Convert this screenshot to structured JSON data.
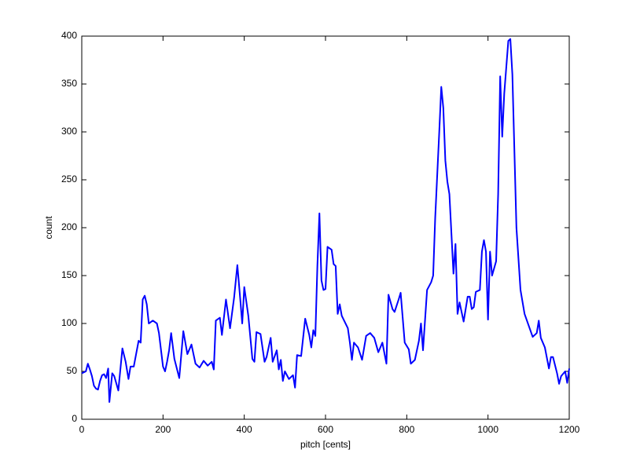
{
  "chart_data": {
    "type": "line",
    "xlabel": "pitch [cents]",
    "ylabel": "count",
    "xlim": [
      0,
      1200
    ],
    "ylim": [
      0,
      400
    ],
    "xticks": [
      0,
      200,
      400,
      600,
      800,
      1000,
      1200
    ],
    "yticks": [
      0,
      50,
      100,
      150,
      200,
      250,
      300,
      350,
      400
    ],
    "grid": false,
    "x": [
      0,
      5,
      10,
      15,
      20,
      25,
      30,
      35,
      40,
      45,
      50,
      55,
      60,
      65,
      68,
      75,
      80,
      90,
      100,
      108,
      115,
      120,
      128,
      140,
      145,
      150,
      155,
      160,
      165,
      175,
      185,
      190,
      200,
      205,
      210,
      215,
      220,
      228,
      240,
      250,
      260,
      270,
      280,
      290,
      300,
      310,
      320,
      325,
      330,
      340,
      345,
      355,
      365,
      375,
      383,
      390,
      395,
      400,
      410,
      420,
      425,
      430,
      440,
      450,
      455,
      465,
      470,
      480,
      485,
      490,
      495,
      500,
      510,
      520,
      525,
      530,
      540,
      550,
      560,
      565,
      570,
      575,
      580,
      585,
      590,
      595,
      600,
      605,
      615,
      620,
      625,
      630,
      635,
      640,
      655,
      660,
      665,
      670,
      680,
      690,
      700,
      710,
      720,
      730,
      740,
      750,
      755,
      765,
      770,
      780,
      785,
      795,
      805,
      810,
      820,
      830,
      835,
      840,
      850,
      860,
      865,
      870,
      880,
      885,
      890,
      895,
      900,
      905,
      915,
      920,
      925,
      930,
      940,
      950,
      955,
      960,
      965,
      970,
      980,
      985,
      990,
      995,
      1000,
      1005,
      1010,
      1020,
      1025,
      1030,
      1035,
      1040,
      1050,
      1055,
      1060,
      1070,
      1080,
      1090,
      1100,
      1110,
      1120,
      1125,
      1130,
      1140,
      1150,
      1155,
      1160,
      1170,
      1175,
      1180,
      1190,
      1195,
      1200
    ],
    "series": [
      {
        "name": "count",
        "color": "#0000ff",
        "values": [
          48,
          49,
          50,
          58,
          52,
          45,
          35,
          32,
          31,
          40,
          46,
          47,
          43,
          53,
          18,
          48,
          45,
          30,
          74,
          60,
          42,
          55,
          55,
          82,
          80,
          125,
          129,
          120,
          100,
          103,
          100,
          90,
          55,
          50,
          60,
          72,
          90,
          63,
          43,
          92,
          68,
          78,
          58,
          54,
          61,
          56,
          60,
          52,
          103,
          106,
          88,
          125,
          95,
          127,
          161,
          126,
          100,
          138,
          108,
          63,
          60,
          91,
          89,
          60,
          65,
          85,
          60,
          72,
          52,
          62,
          40,
          50,
          42,
          46,
          33,
          67,
          66,
          105,
          88,
          75,
          93,
          87,
          160,
          215,
          145,
          135,
          136,
          180,
          177,
          162,
          160,
          110,
          120,
          108,
          95,
          80,
          62,
          80,
          75,
          62,
          87,
          90,
          85,
          70,
          80,
          58,
          130,
          115,
          112,
          125,
          132,
          80,
          73,
          58,
          62,
          82,
          100,
          72,
          135,
          143,
          150,
          210,
          300,
          347,
          325,
          270,
          248,
          235,
          152,
          183,
          110,
          122,
          102,
          128,
          128,
          115,
          117,
          133,
          135,
          175,
          187,
          175,
          104,
          175,
          150,
          165,
          235,
          358,
          295,
          340,
          395,
          397,
          360,
          200,
          135,
          110,
          98,
          86,
          90,
          103,
          85,
          75,
          53,
          65,
          65,
          48,
          37,
          45,
          50,
          38,
          53
        ]
      }
    ]
  }
}
